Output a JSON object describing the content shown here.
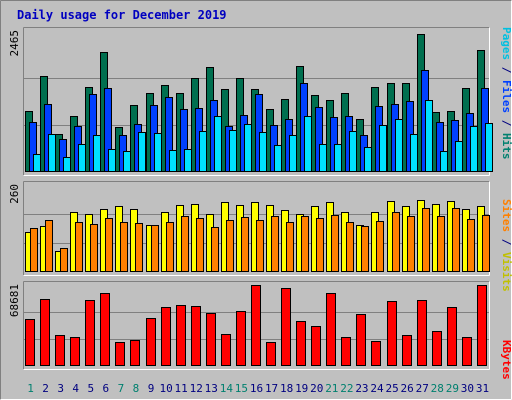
{
  "chart_data": {
    "type": "bar",
    "title": "Daily usage for December 2019",
    "categories": [
      "1",
      "2",
      "3",
      "4",
      "5",
      "6",
      "7",
      "8",
      "9",
      "10",
      "11",
      "12",
      "13",
      "14",
      "15",
      "16",
      "17",
      "18",
      "19",
      "20",
      "21",
      "22",
      "23",
      "24",
      "25",
      "26",
      "27",
      "28",
      "29",
      "30",
      "31"
    ],
    "weekend_days": [
      "1",
      "7",
      "8",
      "14",
      "15",
      "21",
      "22",
      "28",
      "29"
    ],
    "panels": [
      {
        "name": "hits-files-pages",
        "ymax_label": "2465",
        "ymax": 2465,
        "series": [
          {
            "name": "Hits",
            "color": "#006f4f",
            "values": [
              1060,
              1670,
              670,
              980,
              1490,
              2095,
              790,
              1165,
              1380,
              1525,
              1380,
              1640,
              1830,
              1450,
              1640,
              1450,
              1105,
              1270,
              1860,
              1345,
              1255,
              1375,
              935,
              1480,
              1555,
              1560,
              2410,
              1050,
              1075,
              1475,
              2125
            ]
          },
          {
            "name": "Files",
            "color": "#0040ff",
            "values": [
              880,
              1195,
              570,
              805,
              1370,
              1470,
              640,
              840,
              1180,
              1315,
              1100,
              1115,
              1255,
              800,
              1005,
              1365,
              830,
              930,
              1550,
              1135,
              970,
              985,
              650,
              1150,
              1185,
              1245,
              1775,
              870,
              905,
              1025,
              1460
            ]
          },
          {
            "name": "Pages",
            "color": "#00e0ff",
            "values": [
              310,
              665,
              270,
              485,
              650,
              400,
              360,
              695,
              675,
              390,
              405,
              720,
              985,
              730,
              835,
              705,
              465,
              655,
              980,
              495,
              485,
              720,
              430,
              825,
              920,
              670,
              1250,
              375,
              540,
              805,
              860
            ]
          }
        ]
      },
      {
        "name": "visits-sites",
        "ymax_label": "260",
        "ymax": 260,
        "series": [
          {
            "name": "Visits",
            "color": "#ffff00",
            "values": [
              120,
              136,
              64,
              180,
              172,
              188,
              196,
              188,
              140,
              180,
              200,
              204,
              172,
              208,
              200,
              208,
              200,
              184,
              172,
              196,
              208,
              180,
              140,
              180,
              212,
              196,
              216,
              204,
              212,
              188,
              196
            ]
          },
          {
            "name": "Sites",
            "color": "#ff8000",
            "values": [
              130,
              154,
              72,
              150,
              142,
              162,
              150,
              146,
              140,
              150,
              168,
              160,
              134,
              154,
              164,
              156,
              168,
              150,
              168,
              160,
              170,
              150,
              136,
              152,
              180,
              168,
              190,
              166,
              190,
              158,
              170
            ]
          }
        ]
      },
      {
        "name": "kbytes",
        "ymax_label": "68681",
        "ymax": 68681,
        "series": [
          {
            "name": "KBytes",
            "color": "#ff0000",
            "values": [
              40000,
              57000,
              26000,
              25000,
              56000,
              62000,
              20000,
              22000,
              41000,
              50000,
              52000,
              51000,
              45000,
              27000,
              47000,
              68681,
              20000,
              66000,
              38000,
              34000,
              62000,
              25000,
              44000,
              21000,
              55000,
              26000,
              56000,
              30000,
              50000,
              25000,
              68681
            ]
          }
        ]
      }
    ],
    "axis_titles": [
      {
        "key": "hits-files-pages",
        "parts": [
          {
            "text": "Pages",
            "color": "#00c0e0"
          },
          {
            "text": " / ",
            "color": "#000080"
          },
          {
            "text": "Files",
            "color": "#0040ff"
          },
          {
            "text": " / ",
            "color": "#000080"
          },
          {
            "text": "Hits",
            "color": "#00806f"
          }
        ]
      },
      {
        "key": "visits-sites",
        "parts": [
          {
            "text": "Sites",
            "color": "#ff8000"
          },
          {
            "text": " / ",
            "color": "#000080"
          },
          {
            "text": "Visits",
            "color": "#c0c000"
          }
        ]
      },
      {
        "key": "kbytes",
        "parts": [
          {
            "text": "KBytes",
            "color": "#ff0000"
          }
        ]
      }
    ],
    "colors": {
      "background": "#c0c0c0",
      "title": "#0000c0",
      "weekday_label": "#000080",
      "weekend_label": "#00806f"
    }
  }
}
